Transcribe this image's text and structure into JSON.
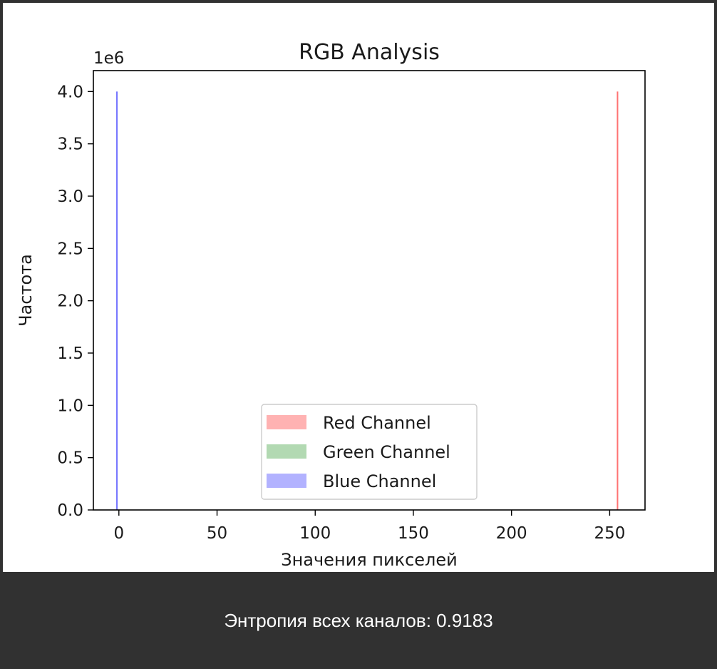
{
  "chart_data": {
    "type": "histogram",
    "title": "RGB Analysis",
    "xlabel": "Значения пикселей",
    "ylabel": "Частота",
    "y_offset_label": "1e6",
    "xlim": [
      -13,
      268
    ],
    "ylim": [
      0,
      4.2
    ],
    "x_ticks": [
      0,
      50,
      100,
      150,
      200,
      250
    ],
    "y_ticks": [
      0.0,
      0.5,
      1.0,
      1.5,
      2.0,
      2.5,
      3.0,
      3.5,
      4.0
    ],
    "series": [
      {
        "name": "Red Channel",
        "color": "#ff0000",
        "alpha": 0.3,
        "bins": [
          {
            "x": 254,
            "value": 4.0
          }
        ]
      },
      {
        "name": "Green Channel",
        "color": "#008000",
        "alpha": 0.3,
        "bins": []
      },
      {
        "name": "Blue Channel",
        "color": "#0000ff",
        "alpha": 0.3,
        "bins": [
          {
            "x": -1,
            "value": 4.0
          }
        ]
      }
    ],
    "legend_location": "lower-center"
  },
  "caption": {
    "text": "Энтропия всех каналов: 0.9183"
  }
}
